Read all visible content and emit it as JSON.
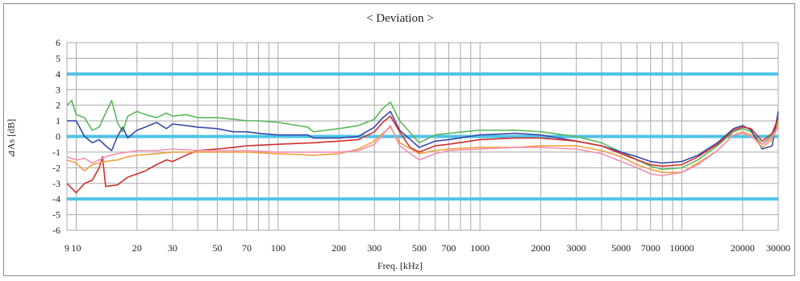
{
  "chart_data": {
    "type": "line",
    "title": "< Deviation >",
    "xlabel": "Freq. [kHz]",
    "ylabel": "⊿As [dB]",
    "x_scale": "log",
    "xlim": [
      9,
      30000
    ],
    "ylim": [
      -6,
      6
    ],
    "grid": true,
    "legend": "none",
    "x_ticks": [
      9,
      10,
      20,
      30,
      50,
      70,
      100,
      200,
      300,
      500,
      700,
      1000,
      2000,
      3000,
      5000,
      7000,
      10000,
      20000,
      30000
    ],
    "x_tick_labels": [
      "9",
      "10",
      "20",
      "30",
      "50",
      "70",
      "100",
      "200",
      "300",
      "500",
      "700",
      "1000",
      "2000",
      "3000",
      "5000",
      "7000",
      "10000",
      "20000",
      "30000"
    ],
    "x_minor_gridlines": [
      40,
      60,
      80,
      90,
      400,
      600,
      800,
      900,
      4000,
      6000,
      8000,
      9000
    ],
    "y_ticks": [
      6,
      5,
      4,
      3,
      2,
      1,
      0,
      -1,
      -2,
      -3,
      -4,
      -5,
      -6
    ],
    "y_tick_labels": [
      "6",
      "5",
      "4",
      "3",
      "2",
      "1",
      "0",
      "-1",
      "-2",
      "-3",
      "-4",
      "-5",
      "-6"
    ],
    "reference_lines": [
      {
        "y": 4,
        "color": "#4fc3e6"
      },
      {
        "y": 0,
        "color": "#4fc3e6"
      },
      {
        "y": -4,
        "color": "#4fc3e6"
      }
    ],
    "series": [
      {
        "color": "#5cb85c",
        "points": [
          [
            9,
            2.0
          ],
          [
            9.5,
            2.3
          ],
          [
            10,
            1.4
          ],
          [
            11,
            1.2
          ],
          [
            12,
            0.4
          ],
          [
            13,
            0.6
          ],
          [
            14,
            1.5
          ],
          [
            15,
            2.3
          ],
          [
            16,
            0.9
          ],
          [
            17,
            0.3
          ],
          [
            18,
            1.3
          ],
          [
            20,
            1.6
          ],
          [
            22,
            1.4
          ],
          [
            25,
            1.2
          ],
          [
            28,
            1.5
          ],
          [
            30,
            1.3
          ],
          [
            35,
            1.4
          ],
          [
            40,
            1.2
          ],
          [
            50,
            1.2
          ],
          [
            60,
            1.1
          ],
          [
            70,
            1.0
          ],
          [
            80,
            1.0
          ],
          [
            100,
            0.9
          ],
          [
            140,
            0.6
          ],
          [
            150,
            0.3
          ],
          [
            200,
            0.5
          ],
          [
            250,
            0.7
          ],
          [
            300,
            1.1
          ],
          [
            330,
            1.8
          ],
          [
            360,
            2.2
          ],
          [
            400,
            1.0
          ],
          [
            500,
            -0.4
          ],
          [
            600,
            0.1
          ],
          [
            700,
            0.2
          ],
          [
            1000,
            0.4
          ],
          [
            1500,
            0.4
          ],
          [
            2000,
            0.3
          ],
          [
            3000,
            0.0
          ],
          [
            4000,
            -0.4
          ],
          [
            5000,
            -1.0
          ],
          [
            6000,
            -1.5
          ],
          [
            7000,
            -1.9
          ],
          [
            8000,
            -2.1
          ],
          [
            10000,
            -2.0
          ],
          [
            12000,
            -1.5
          ],
          [
            15000,
            -0.6
          ],
          [
            18000,
            0.3
          ],
          [
            20000,
            0.5
          ],
          [
            22000,
            0.3
          ],
          [
            25000,
            -0.5
          ],
          [
            28000,
            0.1
          ],
          [
            30000,
            1.0
          ]
        ]
      },
      {
        "color": "#3949ab",
        "points": [
          [
            9,
            1.0
          ],
          [
            10,
            1.0
          ],
          [
            11,
            0.0
          ],
          [
            12,
            -0.4
          ],
          [
            13,
            -0.2
          ],
          [
            14,
            -0.6
          ],
          [
            15,
            -0.9
          ],
          [
            16,
            0.0
          ],
          [
            17,
            0.6
          ],
          [
            18,
            -0.1
          ],
          [
            20,
            0.4
          ],
          [
            22,
            0.6
          ],
          [
            25,
            0.9
          ],
          [
            28,
            0.5
          ],
          [
            30,
            0.8
          ],
          [
            35,
            0.7
          ],
          [
            40,
            0.6
          ],
          [
            50,
            0.5
          ],
          [
            60,
            0.3
          ],
          [
            70,
            0.3
          ],
          [
            80,
            0.2
          ],
          [
            100,
            0.1
          ],
          [
            140,
            0.1
          ],
          [
            150,
            -0.1
          ],
          [
            200,
            -0.1
          ],
          [
            250,
            0.0
          ],
          [
            300,
            0.6
          ],
          [
            330,
            1.2
          ],
          [
            360,
            1.6
          ],
          [
            400,
            0.4
          ],
          [
            500,
            -0.7
          ],
          [
            600,
            -0.3
          ],
          [
            700,
            -0.2
          ],
          [
            1000,
            0.1
          ],
          [
            1500,
            0.2
          ],
          [
            2000,
            0.1
          ],
          [
            3000,
            -0.3
          ],
          [
            4000,
            -0.6
          ],
          [
            5000,
            -1.0
          ],
          [
            6000,
            -1.3
          ],
          [
            7000,
            -1.6
          ],
          [
            8000,
            -1.7
          ],
          [
            10000,
            -1.6
          ],
          [
            12000,
            -1.2
          ],
          [
            15000,
            -0.4
          ],
          [
            18000,
            0.5
          ],
          [
            20000,
            0.7
          ],
          [
            22000,
            0.4
          ],
          [
            25000,
            -0.8
          ],
          [
            28000,
            -0.6
          ],
          [
            30000,
            1.6
          ]
        ]
      },
      {
        "color": "#d32f2f",
        "points": [
          [
            9,
            -3.0
          ],
          [
            10,
            -3.6
          ],
          [
            11,
            -3.0
          ],
          [
            12,
            -2.8
          ],
          [
            13,
            -2.0
          ],
          [
            13.5,
            -1.3
          ],
          [
            14,
            -3.2
          ],
          [
            16,
            -3.1
          ],
          [
            18,
            -2.6
          ],
          [
            20,
            -2.4
          ],
          [
            22,
            -2.2
          ],
          [
            25,
            -1.8
          ],
          [
            28,
            -1.5
          ],
          [
            30,
            -1.6
          ],
          [
            35,
            -1.2
          ],
          [
            40,
            -0.9
          ],
          [
            50,
            -0.8
          ],
          [
            60,
            -0.7
          ],
          [
            70,
            -0.6
          ],
          [
            100,
            -0.5
          ],
          [
            150,
            -0.4
          ],
          [
            200,
            -0.3
          ],
          [
            250,
            -0.2
          ],
          [
            300,
            0.3
          ],
          [
            330,
            0.9
          ],
          [
            360,
            1.3
          ],
          [
            400,
            0.3
          ],
          [
            450,
            -0.7
          ],
          [
            500,
            -1.0
          ],
          [
            600,
            -0.6
          ],
          [
            700,
            -0.5
          ],
          [
            1000,
            -0.2
          ],
          [
            1500,
            -0.1
          ],
          [
            2000,
            -0.1
          ],
          [
            3000,
            -0.3
          ],
          [
            4000,
            -0.6
          ],
          [
            5000,
            -1.1
          ],
          [
            6000,
            -1.5
          ],
          [
            7000,
            -1.8
          ],
          [
            8000,
            -1.9
          ],
          [
            10000,
            -1.8
          ],
          [
            12000,
            -1.3
          ],
          [
            15000,
            -0.5
          ],
          [
            18000,
            0.4
          ],
          [
            20000,
            0.6
          ],
          [
            22000,
            0.5
          ],
          [
            25000,
            -0.3
          ],
          [
            28000,
            0.2
          ],
          [
            30000,
            1.2
          ]
        ]
      },
      {
        "color": "#f0a040",
        "points": [
          [
            9,
            -1.5
          ],
          [
            10,
            -1.7
          ],
          [
            11,
            -2.2
          ],
          [
            12,
            -1.8
          ],
          [
            14,
            -1.6
          ],
          [
            16,
            -1.5
          ],
          [
            18,
            -1.3
          ],
          [
            20,
            -1.2
          ],
          [
            25,
            -1.1
          ],
          [
            30,
            -1.0
          ],
          [
            40,
            -1.0
          ],
          [
            50,
            -1.0
          ],
          [
            70,
            -1.0
          ],
          [
            100,
            -1.1
          ],
          [
            150,
            -1.2
          ],
          [
            200,
            -1.1
          ],
          [
            250,
            -0.8
          ],
          [
            300,
            -0.3
          ],
          [
            330,
            0.2
          ],
          [
            360,
            0.6
          ],
          [
            400,
            -0.4
          ],
          [
            500,
            -1.1
          ],
          [
            600,
            -0.9
          ],
          [
            700,
            -0.8
          ],
          [
            1000,
            -0.7
          ],
          [
            1500,
            -0.7
          ],
          [
            2000,
            -0.6
          ],
          [
            3000,
            -0.6
          ],
          [
            4000,
            -0.9
          ],
          [
            5000,
            -1.3
          ],
          [
            6000,
            -1.8
          ],
          [
            7000,
            -2.1
          ],
          [
            8000,
            -2.3
          ],
          [
            10000,
            -2.3
          ],
          [
            12000,
            -1.7
          ],
          [
            15000,
            -0.9
          ],
          [
            18000,
            0.1
          ],
          [
            20000,
            0.3
          ],
          [
            22000,
            0.1
          ],
          [
            25000,
            -0.7
          ],
          [
            28000,
            -0.2
          ],
          [
            30000,
            0.8
          ]
        ]
      },
      {
        "color": "#f48fb1",
        "points": [
          [
            9,
            -1.3
          ],
          [
            10,
            -1.5
          ],
          [
            11,
            -1.4
          ],
          [
            12,
            -1.7
          ],
          [
            14,
            -1.3
          ],
          [
            16,
            -1.1
          ],
          [
            18,
            -1.0
          ],
          [
            20,
            -0.9
          ],
          [
            25,
            -0.9
          ],
          [
            30,
            -0.8
          ],
          [
            40,
            -0.9
          ],
          [
            50,
            -0.9
          ],
          [
            70,
            -0.9
          ],
          [
            100,
            -1.0
          ],
          [
            150,
            -1.0
          ],
          [
            200,
            -1.0
          ],
          [
            250,
            -0.9
          ],
          [
            300,
            -0.5
          ],
          [
            330,
            0.1
          ],
          [
            360,
            0.7
          ],
          [
            400,
            -0.6
          ],
          [
            500,
            -1.5
          ],
          [
            600,
            -1.1
          ],
          [
            700,
            -0.9
          ],
          [
            1000,
            -0.8
          ],
          [
            1500,
            -0.7
          ],
          [
            2000,
            -0.7
          ],
          [
            3000,
            -0.8
          ],
          [
            4000,
            -1.1
          ],
          [
            5000,
            -1.6
          ],
          [
            6000,
            -2.0
          ],
          [
            7000,
            -2.4
          ],
          [
            8000,
            -2.5
          ],
          [
            10000,
            -2.3
          ],
          [
            12000,
            -1.8
          ],
          [
            15000,
            -0.9
          ],
          [
            18000,
            0.1
          ],
          [
            20000,
            0.2
          ],
          [
            22000,
            0.0
          ],
          [
            25000,
            -0.5
          ],
          [
            28000,
            -0.1
          ],
          [
            30000,
            0.6
          ]
        ]
      }
    ]
  }
}
